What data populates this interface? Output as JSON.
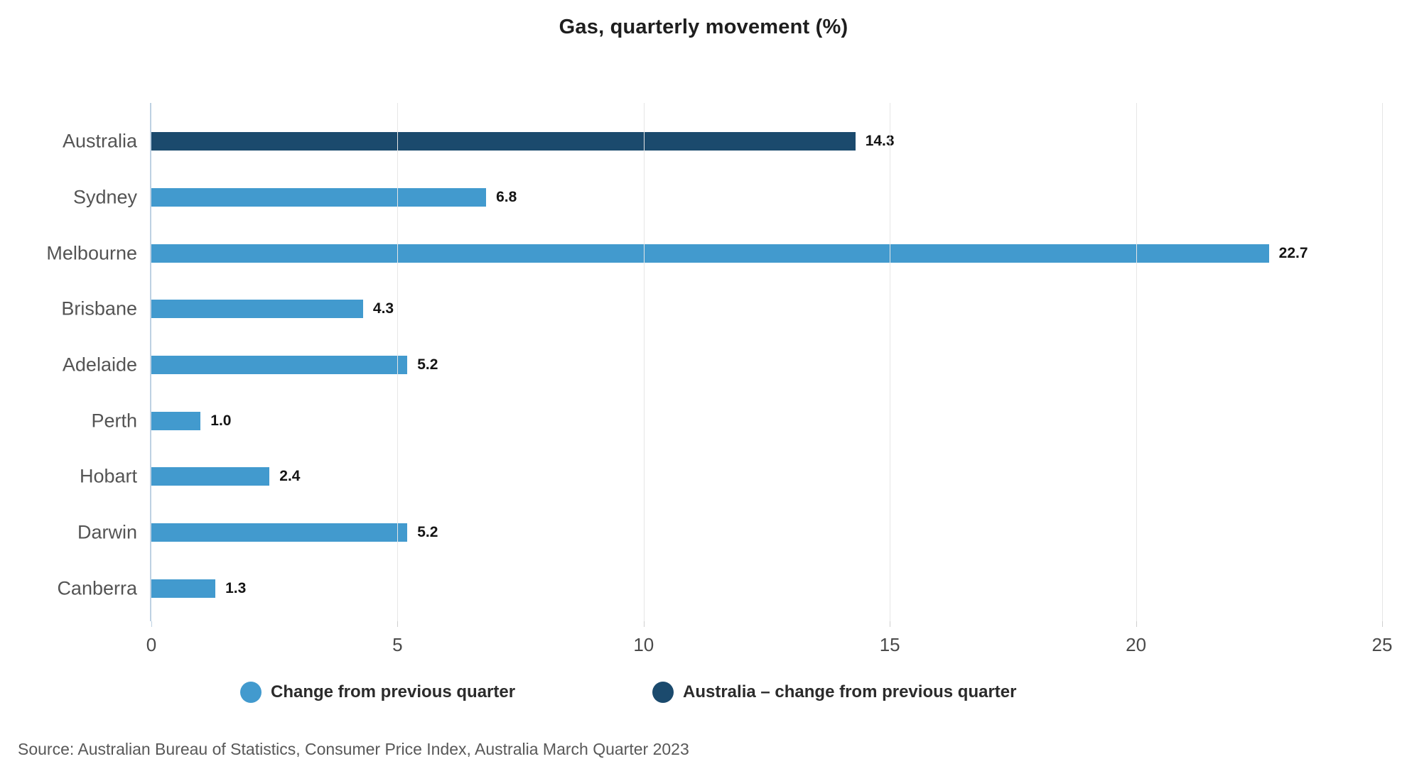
{
  "title": "Gas, quarterly movement (%)",
  "source": "Source: Australian Bureau of Statistics, Consumer Price Index, Australia March Quarter 2023",
  "colors": {
    "bar_light_blue": "#429ACE",
    "bar_dark_blue": "#1B4A6D",
    "axis_line": "#BED1E2",
    "gridline": "#E6E6E6",
    "tick_mark": "#CFCFCF"
  },
  "legend": {
    "items": [
      {
        "label": "Change from previous quarter",
        "color": "#429ACE"
      },
      {
        "label": "Australia – change from previous quarter",
        "color": "#1B4A6D"
      }
    ]
  },
  "chart_data": {
    "type": "bar",
    "orientation": "horizontal",
    "title": "Gas, quarterly movement (%)",
    "xlabel": "",
    "ylabel": "",
    "xlim": [
      0,
      25
    ],
    "xticks": [
      "0",
      "5",
      "10",
      "15",
      "20",
      "25"
    ],
    "grid": "vertical-only",
    "legend_position": "bottom",
    "categories": [
      "Australia",
      "Sydney",
      "Melbourne",
      "Brisbane",
      "Adelaide",
      "Perth",
      "Hobart",
      "Darwin",
      "Canberra"
    ],
    "values": [
      14.3,
      6.8,
      22.7,
      4.3,
      5.2,
      1.0,
      2.4,
      5.2,
      1.3
    ],
    "value_labels": [
      "14.3",
      "6.8",
      "22.7",
      "4.3",
      "5.2",
      "1.0",
      "2.4",
      "5.2",
      "1.3"
    ],
    "highlight_category": "Australia",
    "series": [
      {
        "name": "Change from previous quarter",
        "color": "#429ACE"
      },
      {
        "name": "Australia – change from previous quarter",
        "color": "#1B4A6D"
      }
    ]
  }
}
